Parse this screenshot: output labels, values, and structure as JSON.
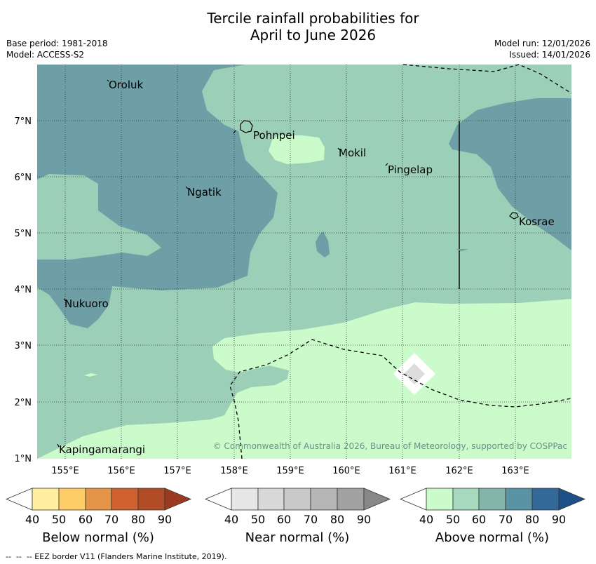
{
  "title": {
    "line1": "Tercile rainfall probabilities for",
    "line2": "April to June 2026"
  },
  "meta": {
    "base_period": "Base period: 1981-2018",
    "model": "Model: ACCESS-S2",
    "model_run": "Model run: 12/01/2026",
    "issued": "Issued: 14/01/2026"
  },
  "map": {
    "lat_labels": [
      "7°N",
      "6°N",
      "5°N",
      "4°N",
      "3°N",
      "2°N",
      "1°N"
    ],
    "lon_labels": [
      "155°E",
      "156°E",
      "157°E",
      "158°E",
      "159°E",
      "160°E",
      "161°E",
      "162°E",
      "163°E"
    ],
    "places": {
      "oroluk": "Oroluk",
      "pohnpei": "Pohnpei",
      "mokil": "Mokil",
      "pingelap": "Pingelap",
      "ngatik": "Ngatik",
      "kosrae": "Kosrae",
      "nukuoro": "Nukuoro",
      "kapingamarangi": "Kapingamarangi"
    },
    "copyright": "© Commonwealth of Australia 2026, Bureau of Meteorology, supported by COSPPac",
    "colors": {
      "above_50": "#cbfbca",
      "above_60": "#9ccfb7",
      "above_70": "#6e9ea6",
      "near_50": "#dcdcdc"
    }
  },
  "legends": [
    {
      "title": "Below normal (%)",
      "ticks": [
        "40",
        "50",
        "60",
        "70",
        "80",
        "90"
      ],
      "colors": [
        "#ffffff",
        "#ffeea0",
        "#ffcd68",
        "#e39447",
        "#cf6130",
        "#b24c27",
        "#9a3a21"
      ]
    },
    {
      "title": "Near normal (%)",
      "ticks": [
        "40",
        "50",
        "60",
        "70",
        "80",
        "90"
      ],
      "colors": [
        "#ffffff",
        "#e6e6e6",
        "#d8d8d8",
        "#c9c9c9",
        "#b5b5b5",
        "#a1a1a1",
        "#888888"
      ]
    },
    {
      "title": "Above normal (%)",
      "ticks": [
        "40",
        "50",
        "60",
        "70",
        "80",
        "90"
      ],
      "colors": [
        "#ffffff",
        "#cbfbca",
        "#a6d9be",
        "#84b5a9",
        "#5a93a3",
        "#336999",
        "#1e4f86"
      ]
    }
  ],
  "footer": "--  --  -- EEZ border V11 (Flanders Marine Institute, 2019)."
}
